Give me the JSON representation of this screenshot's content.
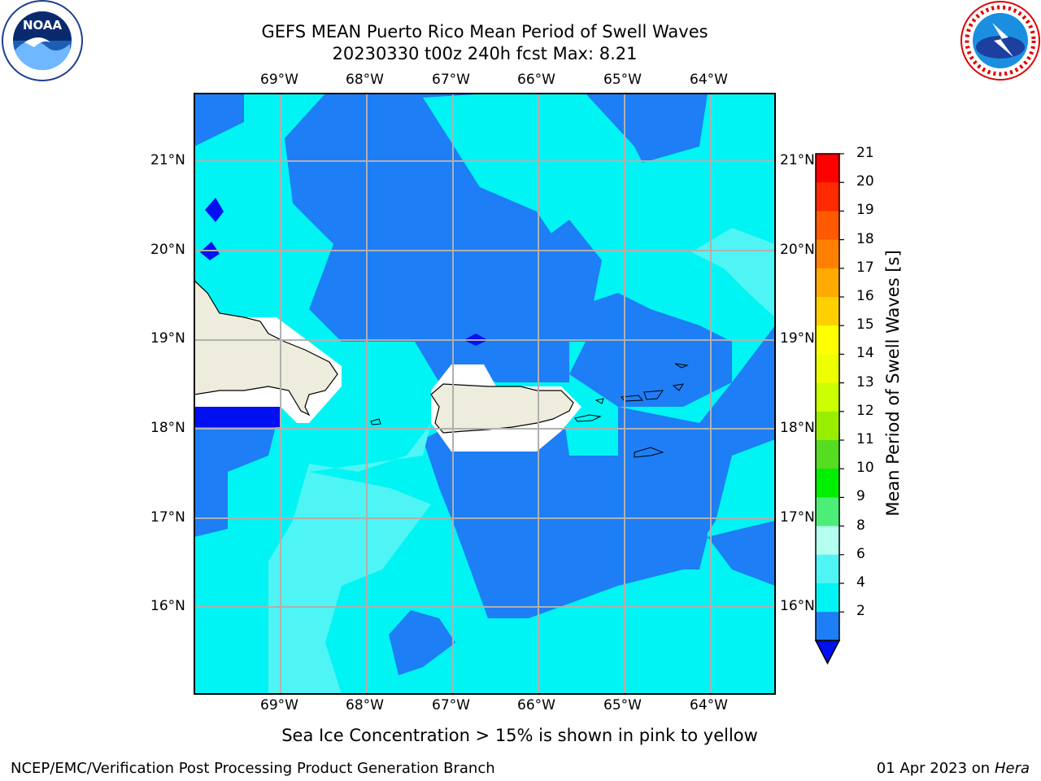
{
  "title": {
    "line1": "GEFS MEAN Puerto Rico Mean Period of Swell Waves",
    "line2": "20230330 t00z 240h fcst   Max: 8.21"
  },
  "map": {
    "lon_labels": [
      "69°W",
      "68°W",
      "67°W",
      "66°W",
      "65°W",
      "64°W"
    ],
    "lat_labels": [
      "21°N",
      "20°N",
      "19°N",
      "18°N",
      "17°N",
      "16°N"
    ],
    "colors": {
      "ocean_dark": "#1e7ef5",
      "ocean_cyan": "#00f4f4",
      "ocean_light": "#4ff4f4",
      "deep_blue": "#0010f0",
      "land": "#eeecdc",
      "grid": "#b0b0b0"
    }
  },
  "colorbar": {
    "label": "Mean Period of Swell Waves [s]",
    "ticks": [
      "21",
      "20",
      "19",
      "18",
      "17",
      "16",
      "15",
      "14",
      "13",
      "12",
      "11",
      "10",
      "9",
      "8",
      "6",
      "4",
      "2"
    ],
    "colors": [
      "#ff0000",
      "#ff2a00",
      "#ff5a00",
      "#ff8000",
      "#ffaa00",
      "#ffd000",
      "#ffff00",
      "#eeff00",
      "#ccff00",
      "#99ee00",
      "#55dd22",
      "#00ee00",
      "#4dee77",
      "#b4fff0",
      "#4ff4f4",
      "#00f4f4",
      "#1e7ef5"
    ],
    "under_color": "#0010f0"
  },
  "notes": {
    "ice": "Sea Ice Concentration > 15% is shown in pink to yellow"
  },
  "footer": {
    "left": "NCEP/EMC/Verification Post Processing Product Generation Branch",
    "right_date": "01 Apr 2023 on ",
    "right_host": "Hera"
  },
  "logos": {
    "noaa": "NOAA",
    "nws_ring": "NATIONAL WEATHER SERVICE"
  }
}
